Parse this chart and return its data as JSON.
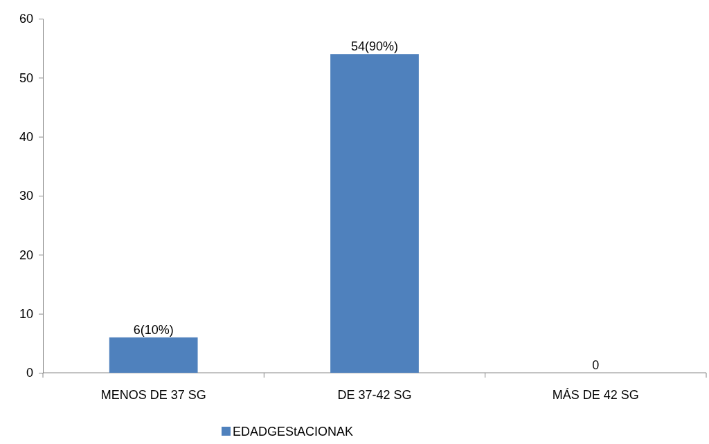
{
  "chart_data": {
    "type": "bar",
    "categories": [
      "MENOS DE 37 SG",
      "DE 37-42 SG",
      "MÁS DE 42 SG"
    ],
    "series": [
      {
        "name": "EDADGEStACIONAK",
        "color": "#4f81bd",
        "values": [
          6,
          54,
          0
        ],
        "value_labels": [
          "6(10%)",
          "54(90%)",
          "0"
        ]
      }
    ],
    "ylim": [
      0,
      60
    ],
    "yticks": [
      0,
      10,
      20,
      30,
      40,
      50,
      60
    ],
    "grid": false,
    "legend": "bottom"
  }
}
